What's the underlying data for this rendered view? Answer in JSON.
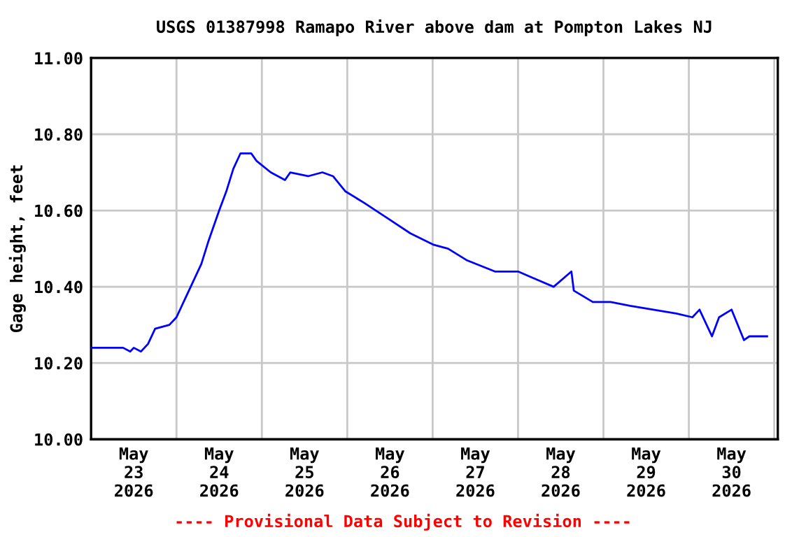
{
  "chart_data": {
    "type": "line",
    "title": "USGS 01387998 Ramapo River above dam at Pompton Lakes NJ",
    "ylabel": "Gage height, feet",
    "annotations": [
      "---- Provisional Data Subject to Revision ----"
    ],
    "series": [
      {
        "color": "#0000ff",
        "x": [
          "2026-05-23T00:00",
          "2026-05-23T09:00",
          "2026-05-23T11:00",
          "2026-05-23T12:00",
          "2026-05-23T14:00",
          "2026-05-23T15:00",
          "2026-05-23T16:00",
          "2026-05-23T18:00",
          "2026-05-23T22:00",
          "2026-05-24T00:00",
          "2026-05-24T02:00",
          "2026-05-24T04:00",
          "2026-05-24T07:00",
          "2026-05-24T09:00",
          "2026-05-24T12:00",
          "2026-05-24T14:00",
          "2026-05-24T16:00",
          "2026-05-24T18:00",
          "2026-05-24T21:00",
          "2026-05-24T22:30",
          "2026-05-25T02:30",
          "2026-05-25T06:30",
          "2026-05-25T08:00",
          "2026-05-25T13:00",
          "2026-05-25T17:00",
          "2026-05-25T20:00",
          "2026-05-25T23:30",
          "2026-05-26T04:45",
          "2026-05-26T11:15",
          "2026-05-26T17:45",
          "2026-05-27T00:20",
          "2026-05-27T04:20",
          "2026-05-27T09:30",
          "2026-05-27T17:30",
          "2026-05-28T00:00",
          "2026-05-28T05:00",
          "2026-05-28T10:00",
          "2026-05-28T15:00",
          "2026-05-28T15:40",
          "2026-05-28T21:00",
          "2026-05-29T02:00",
          "2026-05-29T07:30",
          "2026-05-29T14:00",
          "2026-05-29T20:30",
          "2026-05-30T01:00",
          "2026-05-30T03:00",
          "2026-05-30T06:30",
          "2026-05-30T08:30",
          "2026-05-30T12:00",
          "2026-05-30T15:30",
          "2026-05-30T17:00",
          "2026-05-30T22:00"
        ],
        "values": [
          10.24,
          10.24,
          10.23,
          10.24,
          10.23,
          10.24,
          10.25,
          10.29,
          10.3,
          10.32,
          10.36,
          10.4,
          10.46,
          10.52,
          10.6,
          10.65,
          10.71,
          10.75,
          10.75,
          10.73,
          10.7,
          10.68,
          10.7,
          10.69,
          10.7,
          10.69,
          10.65,
          10.62,
          10.58,
          10.54,
          10.51,
          10.5,
          10.47,
          10.44,
          10.44,
          10.42,
          10.4,
          10.44,
          10.39,
          10.36,
          10.36,
          10.35,
          10.34,
          10.33,
          10.32,
          10.34,
          10.27,
          10.32,
          10.34,
          10.26,
          10.27,
          10.27
        ]
      }
    ],
    "xlim": [
      "2026-05-23T00:00",
      "2026-05-31T01:00"
    ],
    "xticks": [
      {
        "value": "2026-05-23T12:00",
        "label": "May\n23\n2026"
      },
      {
        "value": "2026-05-24T00:00",
        "label": null
      },
      {
        "value": "2026-05-24T12:00",
        "label": "May\n24\n2026"
      },
      {
        "value": "2026-05-25T00:00",
        "label": null
      },
      {
        "value": "2026-05-25T12:00",
        "label": "May\n25\n2026"
      },
      {
        "value": "2026-05-26T00:00",
        "label": null
      },
      {
        "value": "2026-05-26T12:00",
        "label": "May\n26\n2026"
      },
      {
        "value": "2026-05-27T00:00",
        "label": null
      },
      {
        "value": "2026-05-27T12:00",
        "label": "May\n27\n2026"
      },
      {
        "value": "2026-05-28T00:00",
        "label": null
      },
      {
        "value": "2026-05-28T12:00",
        "label": "May\n28\n2026"
      },
      {
        "value": "2026-05-29T00:00",
        "label": null
      },
      {
        "value": "2026-05-29T12:00",
        "label": "May\n29\n2026"
      },
      {
        "value": "2026-05-30T00:00",
        "label": null
      },
      {
        "value": "2026-05-30T12:00",
        "label": "May\n30\n2026"
      },
      {
        "value": "2026-05-31T00:00",
        "label": null
      }
    ],
    "ylim": [
      10.0,
      11.0
    ],
    "yticks": [
      {
        "value": 10.0,
        "label": "10.00"
      },
      {
        "value": 10.2,
        "label": "10.20"
      },
      {
        "value": 10.4,
        "label": "10.40"
      },
      {
        "value": 10.6,
        "label": "10.60"
      },
      {
        "value": 10.8,
        "label": "10.80"
      },
      {
        "value": 11.0,
        "label": "11.00"
      }
    ],
    "grid": true
  }
}
